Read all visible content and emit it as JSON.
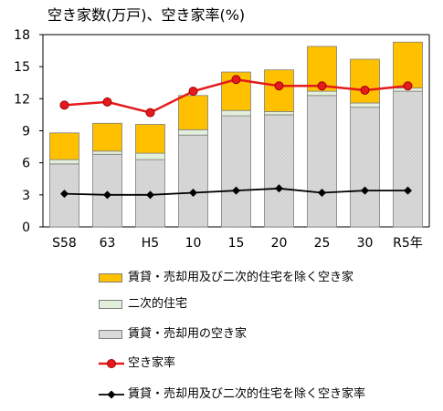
{
  "chart_data": {
    "type": "bar",
    "title": "空き家数(万戸)、空き家率(%)",
    "categories": [
      "S58",
      "63",
      "H5",
      "10",
      "15",
      "20",
      "25",
      "30",
      "R5年"
    ],
    "ylim": [
      0,
      18
    ],
    "yticks": [
      "0",
      "3",
      "6",
      "9",
      "12",
      "15",
      "18"
    ],
    "stacked": true,
    "series": [
      {
        "name": "賃貸・売却用の空き家",
        "kind": "bar",
        "color": "#d9d9d9",
        "values": [
          5.9,
          6.8,
          6.3,
          8.6,
          10.4,
          10.5,
          12.3,
          11.2,
          12.7
        ]
      },
      {
        "name": "二次的住宅",
        "kind": "bar",
        "color": "#e2efda",
        "values": [
          0.4,
          0.3,
          0.6,
          0.5,
          0.5,
          0.3,
          0.4,
          0.4,
          0.3
        ]
      },
      {
        "name": "賃貸・売却用及び二次的住宅を除く空き家",
        "kind": "bar",
        "color": "#ffc000",
        "values": [
          2.5,
          2.6,
          2.7,
          3.2,
          3.6,
          3.9,
          4.2,
          4.1,
          4.3
        ]
      },
      {
        "name": "空き家率",
        "kind": "line",
        "color": "#e41a1c",
        "marker": "circle",
        "values": [
          11.4,
          11.7,
          10.7,
          12.7,
          13.8,
          13.2,
          13.2,
          12.8,
          13.2
        ]
      },
      {
        "name": "賃貸・売却用及び二次的住宅を除く空き家率",
        "kind": "line",
        "color": "#000000",
        "marker": "diamond",
        "values": [
          3.1,
          3.0,
          3.0,
          3.2,
          3.4,
          3.6,
          3.2,
          3.4,
          3.4
        ]
      }
    ],
    "legend": [
      {
        "label": "賃貸・売却用及び二次的住宅を除く空き家",
        "type": "swatch",
        "color": "#ffc000"
      },
      {
        "label": "二次的住宅",
        "type": "swatch",
        "color": "#e2efda"
      },
      {
        "label": "賃貸・売却用の空き家",
        "type": "swatch",
        "color": "#d9d9d9"
      },
      {
        "label": "空き家率",
        "type": "line",
        "color": "#e41a1c",
        "marker": "circle"
      },
      {
        "label": "賃貸・売却用及び二次的住宅を除く空き家率",
        "type": "line",
        "color": "#000000",
        "marker": "diamond"
      }
    ],
    "grid": false,
    "legend_position": "bottom"
  }
}
